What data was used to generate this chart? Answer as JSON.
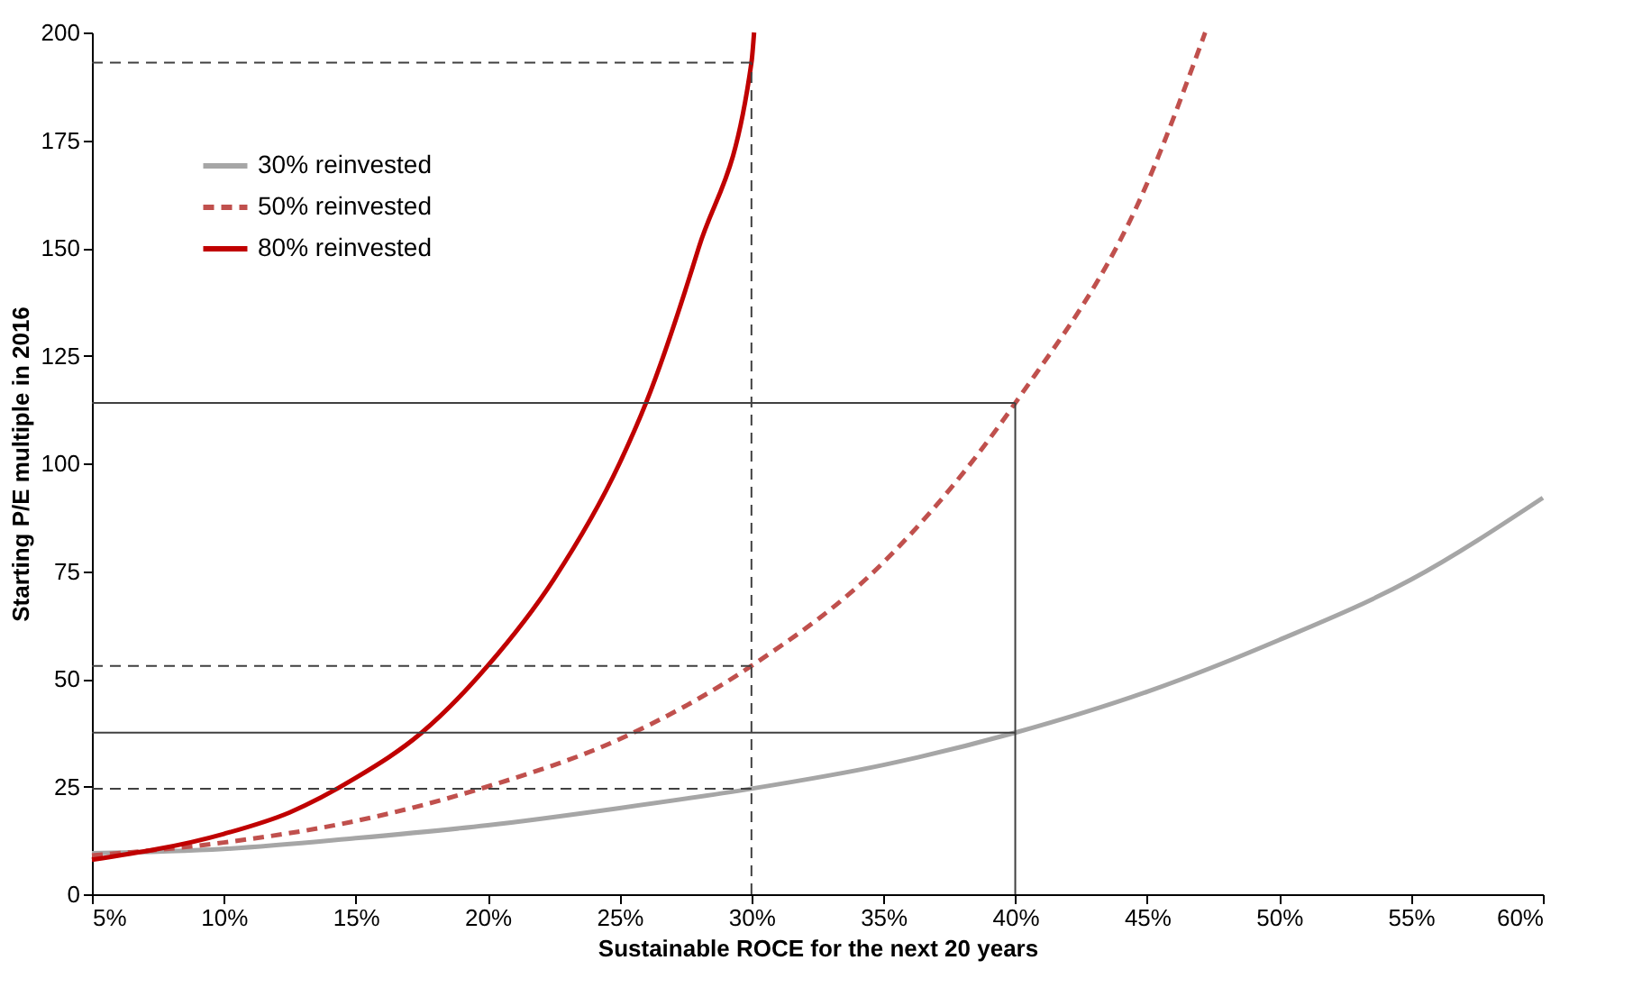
{
  "chart_data": {
    "type": "line",
    "xlabel": "Sustainable ROCE for the next 20 years",
    "ylabel": "Starting P/E multiple in 2016",
    "xlim": [
      5,
      60
    ],
    "ylim": [
      0,
      200
    ],
    "xticks": [
      {
        "value": 5,
        "label": "5%"
      },
      {
        "value": 10,
        "label": "10%"
      },
      {
        "value": 15,
        "label": "15%"
      },
      {
        "value": 20,
        "label": "20%"
      },
      {
        "value": 25,
        "label": "25%"
      },
      {
        "value": 30,
        "label": "30%"
      },
      {
        "value": 35,
        "label": "35%"
      },
      {
        "value": 40,
        "label": "40%"
      },
      {
        "value": 45,
        "label": "45%"
      },
      {
        "value": 50,
        "label": "50%"
      },
      {
        "value": 55,
        "label": "55%"
      },
      {
        "value": 60,
        "label": "60%"
      }
    ],
    "yticks": [
      0,
      25,
      50,
      75,
      100,
      125,
      150,
      175,
      200
    ],
    "grid": false,
    "legend": "top left",
    "marker": "none",
    "series": [
      {
        "name": "30% reinvested",
        "color": "#a6a6a6",
        "line_style": "solid",
        "x": [
          5,
          10,
          15,
          20,
          25,
          30,
          35,
          40,
          45,
          50,
          55,
          60
        ],
        "values": [
          9.5,
          10.5,
          13,
          16,
          20,
          24.5,
          30,
          37.5,
          47,
          59,
          73,
          92
        ]
      },
      {
        "name": "50% reinvested",
        "color": "#c0504d",
        "line_style": "dashed",
        "x": [
          5,
          10,
          15,
          20,
          25,
          30,
          35,
          40,
          45,
          47.2
        ],
        "values": [
          9,
          12,
          17,
          25,
          36,
          53,
          77,
          114,
          165,
          200
        ]
      },
      {
        "name": "80% reinvested",
        "color": "#c00000",
        "line_style": "solid",
        "x": [
          5,
          10,
          12.5,
          15,
          17.5,
          20,
          22.5,
          25,
          26,
          28,
          30,
          30.1
        ],
        "values": [
          8,
          14,
          19,
          27,
          37.5,
          53,
          73,
          100,
          114,
          150,
          193,
          200
        ]
      },
      {
        "color": "#404040",
        "line_style": "dashed",
        "x": [
          5,
          30
        ],
        "values": [
          193,
          193
        ]
      },
      {
        "color": "#404040",
        "line_style": "dashed",
        "x": [
          30,
          30
        ],
        "values": [
          0,
          193
        ]
      },
      {
        "color": "#404040",
        "line_style": "dashed",
        "x": [
          5,
          30
        ],
        "values": [
          53,
          53
        ]
      },
      {
        "color": "#404040",
        "line_style": "dashed",
        "x": [
          5,
          30
        ],
        "values": [
          24.5,
          24.5
        ]
      },
      {
        "color": "#404040",
        "line_style": "solid",
        "x": [
          5,
          40
        ],
        "values": [
          114,
          114
        ]
      },
      {
        "color": "#404040",
        "line_style": "solid",
        "x": [
          5,
          40
        ],
        "values": [
          37.5,
          37.5
        ]
      },
      {
        "color": "#404040",
        "line_style": "solid",
        "x": [
          40,
          40
        ],
        "values": [
          0,
          114
        ]
      }
    ]
  }
}
